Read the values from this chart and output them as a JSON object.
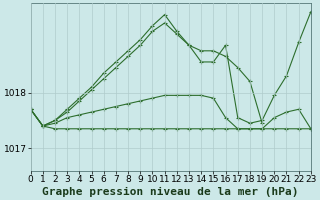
{
  "background_color": "#cce8e8",
  "grid_color": "#b0cccc",
  "line_color": "#2d6e2d",
  "marker_color": "#2d6e2d",
  "title": "Graphe pression niveau de la mer (hPa)",
  "xlim": [
    0,
    23
  ],
  "ylim": [
    1016.6,
    1019.6
  ],
  "yticks": [
    1017,
    1018
  ],
  "xticks": [
    0,
    1,
    2,
    3,
    4,
    5,
    6,
    7,
    8,
    9,
    10,
    11,
    12,
    13,
    14,
    15,
    16,
    17,
    18,
    19,
    20,
    21,
    22,
    23
  ],
  "series": [
    [
      1017.7,
      1017.4,
      1017.35,
      1017.35,
      1017.35,
      1017.35,
      1017.35,
      1017.35,
      1017.35,
      1017.35,
      1017.35,
      1017.35,
      1017.35,
      1017.35,
      1017.35,
      1017.35,
      1017.35,
      1017.35,
      1017.35,
      1017.35,
      1017.35,
      1017.35,
      1017.35,
      1017.35
    ],
    [
      1017.7,
      1017.4,
      1017.45,
      1017.55,
      1017.6,
      1017.65,
      1017.7,
      1017.75,
      1017.8,
      1017.85,
      1017.9,
      1017.95,
      1017.95,
      1017.95,
      1017.95,
      1017.9,
      1017.55,
      1017.35,
      1017.35,
      1017.35,
      1017.55,
      1017.65,
      1017.7,
      1017.35
    ],
    [
      1017.7,
      1017.4,
      1017.5,
      1017.65,
      1017.85,
      1018.05,
      1018.25,
      1018.45,
      1018.65,
      1018.85,
      1019.1,
      1019.25,
      1019.05,
      1018.85,
      1018.75,
      1018.75,
      1018.65,
      1018.45,
      1018.2,
      1017.45,
      null,
      null,
      null,
      null
    ],
    [
      1017.7,
      1017.4,
      1017.5,
      1017.7,
      1017.9,
      1018.1,
      1018.35,
      1018.55,
      1018.75,
      1018.95,
      1019.2,
      1019.4,
      1019.1,
      1018.85,
      1018.55,
      1018.55,
      1018.85,
      1017.55,
      1017.45,
      1017.5,
      1017.95,
      1018.3,
      1018.9,
      1019.45
    ]
  ],
  "title_fontsize": 8,
  "tick_fontsize": 6.5
}
